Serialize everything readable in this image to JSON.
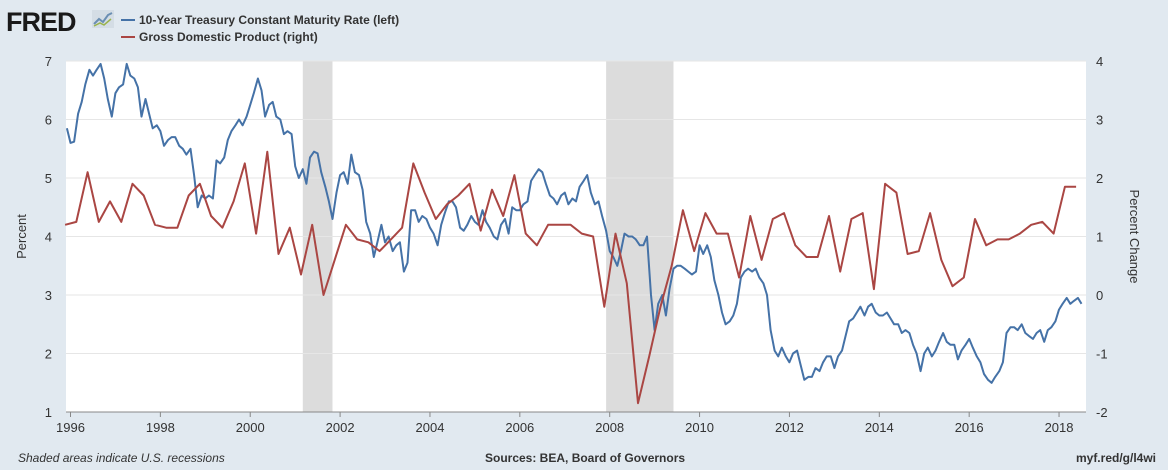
{
  "header": {
    "logo_text": "FRED",
    "logo_icon": "line-chart-icon"
  },
  "footer": {
    "note": "Shaded areas indicate U.S. recessions",
    "sources": "Sources: BEA, Board of Governors",
    "url": "myf.red/g/l4wi"
  },
  "colors": {
    "background": "#e1e9f0",
    "plot_background": "#ffffff",
    "recession": "#dcdcdc",
    "series_blue": "#4572a7",
    "series_red": "#aa4643"
  },
  "chart_data": {
    "type": "line",
    "title": "",
    "xlabel": "",
    "ylabel": "Percent",
    "y2label": "Percent Change",
    "xlim": [
      1995.9,
      2018.6
    ],
    "ylim": [
      1,
      7
    ],
    "y2lim": [
      -2,
      4
    ],
    "x_ticks": [
      "1996",
      "1998",
      "2000",
      "2002",
      "2004",
      "2006",
      "2008",
      "2010",
      "2012",
      "2014",
      "2016",
      "2018"
    ],
    "y_ticks": [
      "1",
      "2",
      "3",
      "4",
      "5",
      "6",
      "7"
    ],
    "y2_ticks": [
      "-2",
      "-1",
      "0",
      "1",
      "2",
      "3",
      "4"
    ],
    "grid": true,
    "legend_position": "top-left",
    "recessions": [
      [
        2001.17,
        2001.83
      ],
      [
        2007.92,
        2009.42
      ]
    ],
    "series": [
      {
        "name": "10-Year Treasury Constant Maturity Rate (left)",
        "axis": "left",
        "color": "#4572a7",
        "x": [
          1995.92,
          1996.0,
          1996.08,
          1996.17,
          1996.25,
          1996.33,
          1996.42,
          1996.5,
          1996.58,
          1996.67,
          1996.75,
          1996.83,
          1996.92,
          1997.0,
          1997.08,
          1997.17,
          1997.25,
          1997.33,
          1997.42,
          1997.5,
          1997.58,
          1997.67,
          1997.75,
          1997.83,
          1997.92,
          1998.0,
          1998.08,
          1998.17,
          1998.25,
          1998.33,
          1998.42,
          1998.5,
          1998.58,
          1998.67,
          1998.75,
          1998.83,
          1998.92,
          1999.0,
          1999.08,
          1999.17,
          1999.25,
          1999.33,
          1999.42,
          1999.5,
          1999.58,
          1999.67,
          1999.75,
          1999.83,
          1999.92,
          2000.0,
          2000.08,
          2000.17,
          2000.25,
          2000.33,
          2000.42,
          2000.5,
          2000.58,
          2000.67,
          2000.75,
          2000.83,
          2000.92,
          2001.0,
          2001.08,
          2001.17,
          2001.25,
          2001.33,
          2001.42,
          2001.5,
          2001.58,
          2001.67,
          2001.75,
          2001.83,
          2001.92,
          2002.0,
          2002.08,
          2002.17,
          2002.25,
          2002.33,
          2002.42,
          2002.5,
          2002.58,
          2002.67,
          2002.75,
          2002.83,
          2002.92,
          2003.0,
          2003.08,
          2003.17,
          2003.25,
          2003.33,
          2003.42,
          2003.5,
          2003.58,
          2003.67,
          2003.75,
          2003.83,
          2003.92,
          2004.0,
          2004.08,
          2004.17,
          2004.25,
          2004.33,
          2004.42,
          2004.5,
          2004.58,
          2004.67,
          2004.75,
          2004.83,
          2004.92,
          2005.0,
          2005.08,
          2005.17,
          2005.25,
          2005.33,
          2005.42,
          2005.5,
          2005.58,
          2005.67,
          2005.75,
          2005.83,
          2005.92,
          2006.0,
          2006.08,
          2006.17,
          2006.25,
          2006.33,
          2006.42,
          2006.5,
          2006.58,
          2006.67,
          2006.75,
          2006.83,
          2006.92,
          2007.0,
          2007.08,
          2007.17,
          2007.25,
          2007.33,
          2007.42,
          2007.5,
          2007.58,
          2007.67,
          2007.75,
          2007.83,
          2007.92,
          2008.0,
          2008.08,
          2008.17,
          2008.25,
          2008.33,
          2008.42,
          2008.5,
          2008.58,
          2008.67,
          2008.75,
          2008.83,
          2008.92,
          2009.0,
          2009.08,
          2009.17,
          2009.25,
          2009.33,
          2009.42,
          2009.5,
          2009.58,
          2009.67,
          2009.75,
          2009.83,
          2009.92,
          2010.0,
          2010.08,
          2010.17,
          2010.25,
          2010.33,
          2010.42,
          2010.5,
          2010.58,
          2010.67,
          2010.75,
          2010.83,
          2010.92,
          2011.0,
          2011.08,
          2011.17,
          2011.25,
          2011.33,
          2011.42,
          2011.5,
          2011.58,
          2011.67,
          2011.75,
          2011.83,
          2011.92,
          2012.0,
          2012.08,
          2012.17,
          2012.25,
          2012.33,
          2012.42,
          2012.5,
          2012.58,
          2012.67,
          2012.75,
          2012.83,
          2012.92,
          2013.0,
          2013.08,
          2013.17,
          2013.25,
          2013.33,
          2013.42,
          2013.5,
          2013.58,
          2013.67,
          2013.75,
          2013.83,
          2013.92,
          2014.0,
          2014.08,
          2014.17,
          2014.25,
          2014.33,
          2014.42,
          2014.5,
          2014.58,
          2014.67,
          2014.75,
          2014.83,
          2014.92,
          2015.0,
          2015.08,
          2015.17,
          2015.25,
          2015.33,
          2015.42,
          2015.5,
          2015.58,
          2015.67,
          2015.75,
          2015.83,
          2015.92,
          2016.0,
          2016.08,
          2016.17,
          2016.25,
          2016.33,
          2016.42,
          2016.5,
          2016.58,
          2016.67,
          2016.75,
          2016.83,
          2016.92,
          2017.0,
          2017.08,
          2017.17,
          2017.25,
          2017.33,
          2017.42,
          2017.5,
          2017.58,
          2017.67,
          2017.75,
          2017.83,
          2017.92,
          2018.0,
          2018.08,
          2018.17,
          2018.25,
          2018.33,
          2018.42,
          2018.5
        ],
        "values": [
          5.85,
          5.6,
          5.62,
          6.1,
          6.3,
          6.6,
          6.85,
          6.75,
          6.85,
          6.95,
          6.7,
          6.35,
          6.05,
          6.45,
          6.55,
          6.6,
          6.95,
          6.75,
          6.7,
          6.55,
          6.05,
          6.35,
          6.1,
          5.85,
          5.9,
          5.8,
          5.55,
          5.65,
          5.7,
          5.7,
          5.55,
          5.5,
          5.4,
          5.5,
          5.05,
          4.5,
          4.7,
          4.65,
          4.7,
          4.65,
          5.3,
          5.25,
          5.35,
          5.65,
          5.8,
          5.9,
          6.0,
          5.9,
          6.05,
          6.25,
          6.45,
          6.7,
          6.5,
          6.05,
          6.25,
          6.3,
          6.05,
          6.0,
          5.75,
          5.8,
          5.75,
          5.2,
          5.0,
          5.15,
          4.9,
          5.35,
          5.45,
          5.42,
          5.1,
          4.85,
          4.6,
          4.3,
          4.75,
          5.05,
          5.1,
          4.9,
          5.4,
          5.1,
          5.05,
          4.8,
          4.25,
          4.05,
          3.65,
          3.9,
          4.2,
          3.9,
          4.0,
          3.75,
          3.85,
          3.9,
          3.4,
          3.55,
          4.45,
          4.45,
          4.25,
          4.35,
          4.3,
          4.15,
          4.05,
          3.85,
          4.2,
          4.4,
          4.6,
          4.6,
          4.5,
          4.15,
          4.1,
          4.2,
          4.35,
          4.25,
          4.2,
          4.45,
          4.25,
          4.15,
          4.0,
          3.95,
          4.2,
          4.3,
          4.05,
          4.5,
          4.45,
          4.45,
          4.55,
          4.6,
          4.95,
          5.05,
          5.15,
          5.1,
          4.9,
          4.7,
          4.65,
          4.55,
          4.7,
          4.75,
          4.55,
          4.65,
          4.6,
          4.85,
          4.95,
          5.05,
          4.75,
          4.55,
          4.6,
          4.35,
          4.1,
          3.75,
          3.65,
          3.5,
          3.75,
          4.05,
          4.0,
          4.0,
          3.95,
          3.85,
          3.85,
          4.0,
          3.0,
          2.4,
          2.85,
          3.0,
          2.65,
          3.1,
          3.45,
          3.5,
          3.5,
          3.45,
          3.4,
          3.35,
          3.4,
          3.85,
          3.7,
          3.85,
          3.65,
          3.25,
          3.0,
          2.7,
          2.5,
          2.55,
          2.65,
          2.85,
          3.3,
          3.4,
          3.45,
          3.4,
          3.45,
          3.3,
          3.2,
          3.0,
          2.4,
          2.05,
          1.95,
          2.1,
          1.95,
          1.85,
          2.0,
          2.05,
          1.8,
          1.55,
          1.6,
          1.6,
          1.75,
          1.7,
          1.85,
          1.95,
          1.95,
          1.75,
          1.95,
          2.05,
          2.3,
          2.55,
          2.6,
          2.7,
          2.8,
          2.65,
          2.8,
          2.85,
          2.7,
          2.65,
          2.65,
          2.7,
          2.6,
          2.5,
          2.5,
          2.35,
          2.4,
          2.35,
          2.15,
          2.0,
          1.7,
          2.0,
          2.1,
          1.95,
          2.05,
          2.2,
          2.35,
          2.2,
          2.15,
          2.15,
          1.9,
          2.05,
          2.15,
          2.25,
          2.1,
          1.95,
          1.85,
          1.65,
          1.55,
          1.5,
          1.6,
          1.7,
          1.85,
          2.35,
          2.45,
          2.45,
          2.4,
          2.5,
          2.35,
          2.3,
          2.25,
          2.35,
          2.4,
          2.2,
          2.4,
          2.45,
          2.55,
          2.75,
          2.85,
          2.95,
          2.85,
          2.9,
          2.95,
          2.85
        ]
      },
      {
        "name": "Gross Domestic Product (right)",
        "axis": "right",
        "color": "#aa4643",
        "x": [
          1995.88,
          1996.13,
          1996.38,
          1996.63,
          1996.88,
          1997.13,
          1997.38,
          1997.63,
          1997.88,
          1998.13,
          1998.38,
          1998.63,
          1998.88,
          1999.13,
          1999.38,
          1999.63,
          1999.88,
          2000.13,
          2000.38,
          2000.63,
          2000.88,
          2001.13,
          2001.38,
          2001.63,
          2001.88,
          2002.13,
          2002.38,
          2002.63,
          2002.88,
          2003.13,
          2003.38,
          2003.63,
          2003.88,
          2004.13,
          2004.38,
          2004.63,
          2004.88,
          2005.13,
          2005.38,
          2005.63,
          2005.88,
          2006.13,
          2006.38,
          2006.63,
          2006.88,
          2007.13,
          2007.38,
          2007.63,
          2007.88,
          2008.13,
          2008.38,
          2008.63,
          2008.88,
          2009.13,
          2009.38,
          2009.63,
          2009.88,
          2010.13,
          2010.38,
          2010.63,
          2010.88,
          2011.13,
          2011.38,
          2011.63,
          2011.88,
          2012.13,
          2012.38,
          2012.63,
          2012.88,
          2013.13,
          2013.38,
          2013.63,
          2013.88,
          2014.13,
          2014.38,
          2014.63,
          2014.88,
          2015.13,
          2015.38,
          2015.63,
          2015.88,
          2016.13,
          2016.38,
          2016.63,
          2016.88,
          2017.13,
          2017.38,
          2017.63,
          2017.88,
          2018.13,
          2018.38
        ],
        "values": [
          1.2,
          1.25,
          2.1,
          1.25,
          1.6,
          1.25,
          1.9,
          1.7,
          1.2,
          1.15,
          1.15,
          1.7,
          1.9,
          1.35,
          1.15,
          1.6,
          2.25,
          1.05,
          2.45,
          0.7,
          1.15,
          0.35,
          1.2,
          0.0,
          0.6,
          1.2,
          0.95,
          0.9,
          0.75,
          0.95,
          1.15,
          2.25,
          1.75,
          1.3,
          1.55,
          1.7,
          1.9,
          1.1,
          1.8,
          1.35,
          2.05,
          1.05,
          0.85,
          1.2,
          1.2,
          1.2,
          1.05,
          1.0,
          -0.2,
          1.05,
          0.2,
          -1.85,
          -1.05,
          -0.2,
          0.5,
          1.45,
          0.75,
          1.4,
          1.05,
          1.05,
          0.3,
          1.35,
          0.6,
          1.3,
          1.4,
          0.85,
          0.65,
          0.65,
          1.35,
          0.4,
          1.3,
          1.4,
          0.1,
          1.9,
          1.75,
          0.7,
          0.75,
          1.4,
          0.6,
          0.15,
          0.3,
          1.3,
          0.85,
          0.95,
          0.95,
          1.05,
          1.2,
          1.25,
          1.05,
          1.85,
          1.85
        ]
      }
    ]
  }
}
